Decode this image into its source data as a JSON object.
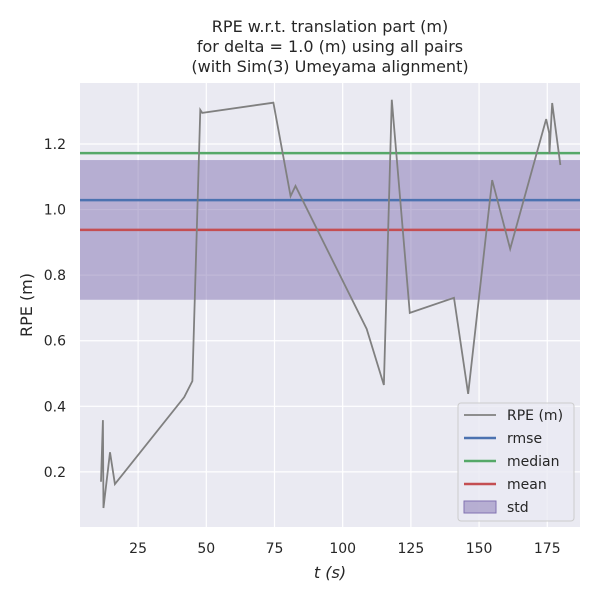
{
  "chart_data": {
    "type": "line",
    "title": [
      "RPE w.r.t. translation part (m)",
      "for delta = 1.0 (m) using all pairs",
      "(with Sim(3) Umeyama alignment)"
    ],
    "xlabel": "t (s)",
    "ylabel": "RPE (m)",
    "xlim": [
      3.7,
      187
    ],
    "ylim": [
      0.032,
      1.386
    ],
    "xticks": [
      25,
      50,
      75,
      100,
      125,
      150,
      175
    ],
    "yticks": [
      0.2,
      0.4,
      0.6,
      0.8,
      1.0,
      1.2
    ],
    "ytick_labels": [
      "0.2",
      "0.4",
      "0.6",
      "0.8",
      "1.0",
      "1.2"
    ],
    "grid": true,
    "series": [
      {
        "name": "RPE (m)",
        "color": "#808080",
        "x": [
          11.4,
          12.1,
          12.3,
          14.7,
          16.5,
          41.9,
          44.9,
          47.8,
          48.5,
          74.6,
          80.9,
          82.7,
          108.8,
          115.1,
          118.0,
          124.6,
          140.8,
          146.0,
          154.8,
          161.4,
          174.6,
          175.7,
          175.8,
          176.8,
          179.8
        ],
        "y": [
          0.17,
          0.358,
          0.09,
          0.26,
          0.163,
          0.428,
          0.477,
          1.304,
          1.295,
          1.326,
          1.041,
          1.072,
          0.636,
          0.465,
          1.335,
          0.685,
          0.731,
          0.438,
          1.09,
          0.88,
          1.276,
          1.233,
          1.17,
          1.325,
          1.136
        ]
      }
    ],
    "stats": {
      "rmse": 1.029,
      "median": 1.172,
      "mean": 0.938,
      "std": 0.213
    },
    "colors": {
      "rmse": "#4c72b0",
      "median": "#55a868",
      "mean": "#c44e52",
      "std": "#8172b2"
    },
    "legend": {
      "placement": "lower-right",
      "entries": [
        "RPE (m)",
        "rmse",
        "median",
        "mean",
        "std"
      ]
    }
  }
}
